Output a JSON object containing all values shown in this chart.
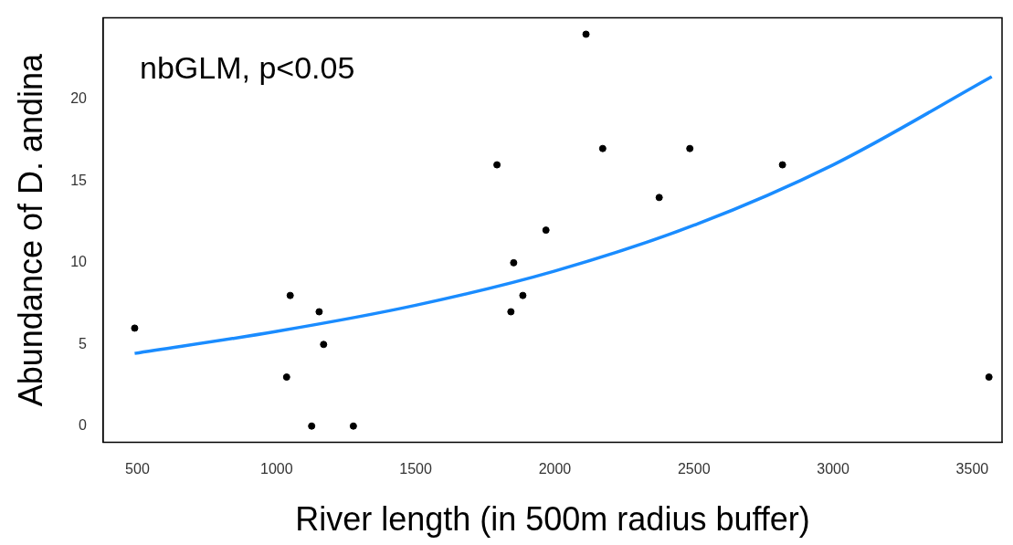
{
  "chart_data": {
    "type": "scatter",
    "xlabel": "River length (in 500m radius buffer)",
    "ylabel": "Abundance of D. andina",
    "annotations": [
      "nbGLM, p<0.05"
    ],
    "xlim": [
      377,
      3607
    ],
    "xticks": [
      500,
      1000,
      1500,
      2000,
      2500,
      3000,
      3500
    ],
    "ylim": [
      -1,
      25
    ],
    "yticks": [
      0,
      5,
      10,
      15,
      20
    ],
    "grid": false,
    "legend": false,
    "marker": "circle",
    "series": [
      {
        "color": "#000000",
        "x": [
          490,
          1049,
          1036,
          1153,
          1169,
          1126,
          1276,
          1792,
          1842,
          1852,
          1885,
          1968,
          2112,
          2172,
          2375,
          2485,
          2818,
          3560
        ],
        "values": [
          6,
          8,
          3,
          7,
          5,
          0,
          0,
          16,
          7,
          10,
          8,
          12,
          24,
          17,
          14,
          17,
          16,
          3
        ]
      },
      {
        "type": "line",
        "color": "#1a8cff",
        "marker": "none",
        "line_style": "solid",
        "x": [
          490,
          1000,
          1500,
          2000,
          2500,
          3000,
          3570
        ],
        "values": [
          4.45,
          5.8,
          7.4,
          9.5,
          12.3,
          16.0,
          21.4
        ]
      }
    ]
  }
}
